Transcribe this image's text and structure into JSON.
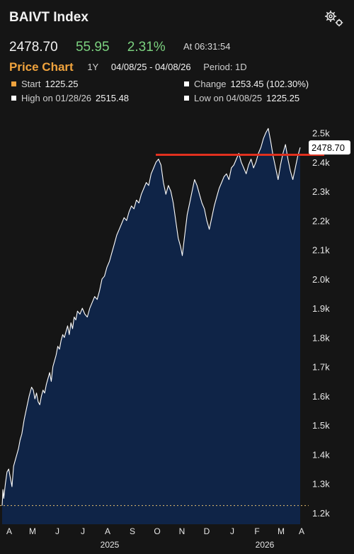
{
  "header": {
    "title": "BAIVT Index",
    "last": "2478.70",
    "change": "55.95",
    "change_pct": "2.31%",
    "time": "At 06:31:54"
  },
  "toolbar": {
    "chart_label": "Price Chart",
    "period_short": "1Y",
    "range": "04/08/25 - 04/08/26",
    "period": "Period: 1D"
  },
  "stats": {
    "start_label": "Start",
    "start_value": "1225.25",
    "change_label": "Change",
    "change_value": "1253.45 (102.30%)",
    "high_label": "High on 01/28/26",
    "high_value": "2515.48",
    "low_label": "Low on 04/08/25",
    "low_value": "1225.25"
  },
  "colors": {
    "start_marker": "#f0a33d",
    "stat_marker": "#ffffff",
    "area_fill": "#0f2447",
    "line": "#ffffff",
    "resistance": "#e0301e",
    "positive": "#7bd17f"
  },
  "icons": {
    "settings": "gear-icon"
  },
  "chart_data": {
    "type": "area",
    "ylim": [
      1170,
      2560
    ],
    "y_ticks": [
      "1.2k",
      "1.3k",
      "1.4k",
      "1.5k",
      "1.6k",
      "1.7k",
      "1.8k",
      "1.9k",
      "2.0k",
      "2.1k",
      "2.2k",
      "2.3k",
      "2.4k",
      "2.5k"
    ],
    "y_tick_values": [
      1200,
      1300,
      1400,
      1500,
      1600,
      1700,
      1800,
      1900,
      2000,
      2100,
      2200,
      2300,
      2400,
      2500
    ],
    "x_month_labels": [
      "A",
      "M",
      "J",
      "J",
      "A",
      "S",
      "O",
      "N",
      "D",
      "J",
      "F",
      "M",
      "A"
    ],
    "x_year_labels": [
      "2025",
      "2026"
    ],
    "last_label": "2478.70",
    "start_line_value": 1225.25,
    "resistance_level": 2425,
    "x": [
      0,
      1,
      2,
      4,
      6,
      8,
      10,
      12,
      14,
      16,
      18,
      20,
      22,
      24,
      27,
      30,
      33,
      36,
      38,
      40,
      42,
      44,
      46,
      48,
      50,
      52,
      54,
      56,
      58,
      60,
      62,
      64,
      66,
      68,
      70,
      72,
      74,
      76,
      78,
      80,
      82,
      84,
      86,
      88,
      90,
      92,
      95,
      98,
      101,
      104,
      107,
      110,
      113,
      116,
      119,
      122,
      125,
      128,
      131,
      134,
      137,
      140,
      143,
      146,
      149,
      152,
      155,
      158,
      161,
      164,
      167,
      170,
      173,
      176,
      179,
      182,
      185,
      188,
      191,
      194,
      197,
      200,
      203,
      206,
      209,
      212,
      215,
      218,
      220,
      223,
      226,
      229,
      232,
      235,
      238,
      241,
      244,
      247,
      250,
      253,
      256,
      259,
      262,
      265,
      268,
      271,
      274,
      277,
      280,
      283,
      286,
      289,
      292,
      295,
      298,
      301,
      304,
      307,
      310,
      313,
      316,
      319,
      322,
      325,
      328,
      331,
      334,
      337,
      340,
      343,
      346,
      349,
      352,
      355,
      358,
      361,
      364
    ],
    "values": [
      1225,
      1280,
      1250,
      1300,
      1340,
      1350,
      1320,
      1290,
      1360,
      1380,
      1400,
      1420,
      1450,
      1470,
      1520,
      1560,
      1600,
      1630,
      1620,
      1590,
      1610,
      1580,
      1570,
      1600,
      1620,
      1610,
      1640,
      1660,
      1680,
      1650,
      1700,
      1720,
      1740,
      1770,
      1760,
      1790,
      1810,
      1800,
      1820,
      1840,
      1810,
      1850,
      1830,
      1870,
      1860,
      1890,
      1880,
      1900,
      1880,
      1870,
      1900,
      1920,
      1940,
      1930,
      1960,
      2000,
      2010,
      2040,
      2060,
      2090,
      2120,
      2150,
      2170,
      2190,
      2210,
      2200,
      2230,
      2250,
      2240,
      2270,
      2260,
      2290,
      2310,
      2330,
      2320,
      2360,
      2380,
      2400,
      2410,
      2390,
      2330,
      2290,
      2320,
      2300,
      2260,
      2200,
      2140,
      2110,
      2080,
      2150,
      2220,
      2260,
      2300,
      2340,
      2320,
      2290,
      2260,
      2240,
      2200,
      2170,
      2210,
      2250,
      2280,
      2310,
      2330,
      2350,
      2360,
      2340,
      2380,
      2390,
      2410,
      2430,
      2400,
      2380,
      2360,
      2390,
      2410,
      2380,
      2400,
      2430,
      2450,
      2480,
      2500,
      2515,
      2470,
      2420,
      2380,
      2340,
      2390,
      2430,
      2460,
      2410,
      2370,
      2340,
      2380,
      2420,
      2450
    ]
  }
}
